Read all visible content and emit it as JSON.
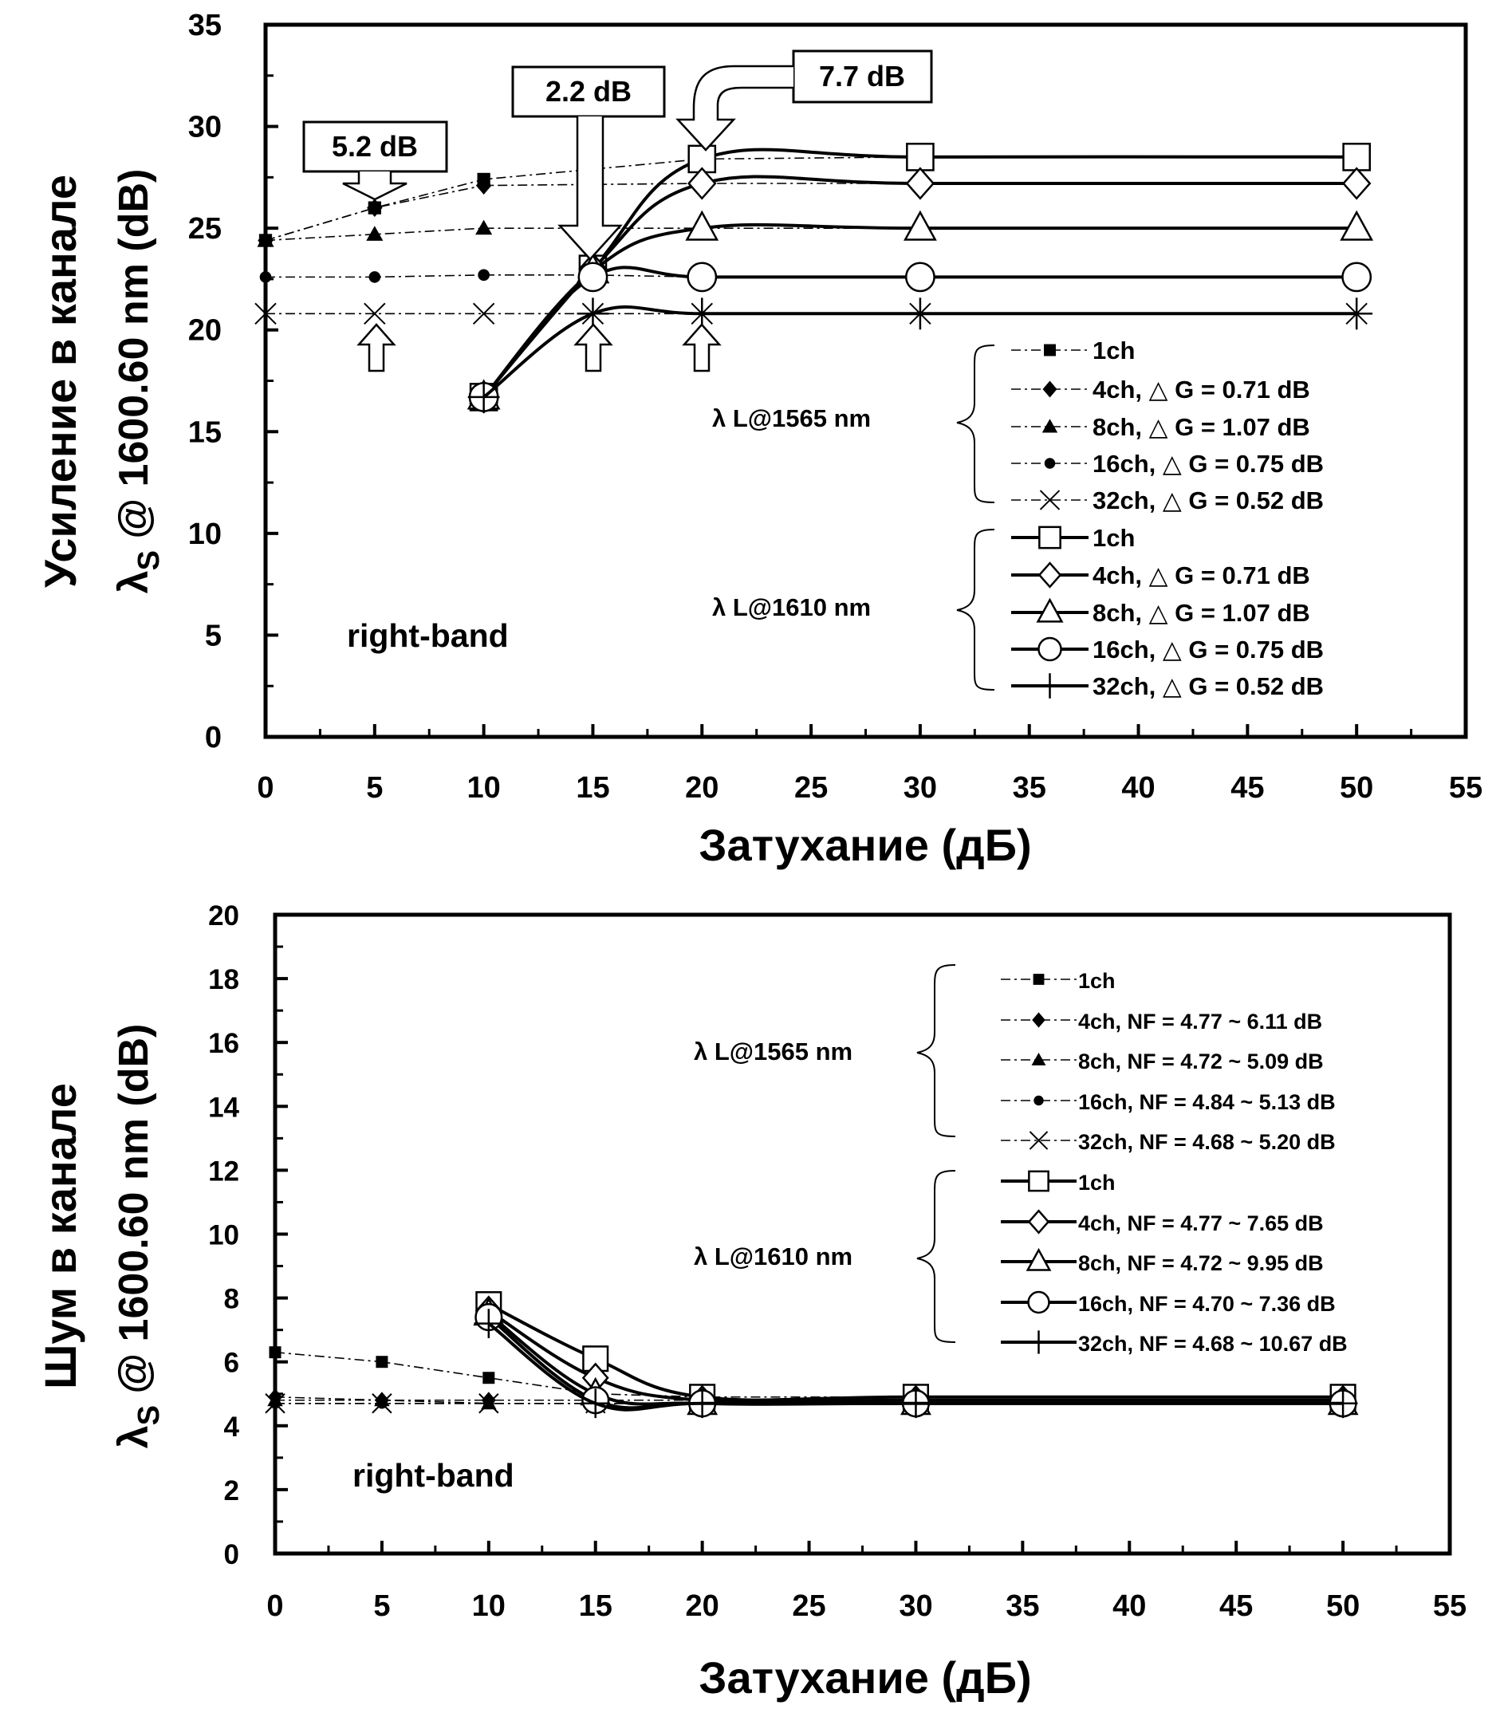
{
  "chart_data": [
    {
      "type": "line",
      "xlabel": "Затухание (дБ)",
      "ylabel_line1": "Усиление в канале",
      "ylabel_line2": "λ",
      "ylabel_line2_sub": "S",
      "ylabel_line2_rest": " @ 1600.60 nm (dB)",
      "xlim": [
        0,
        55
      ],
      "ylim": [
        0,
        35
      ],
      "xticks": [
        0,
        5,
        10,
        15,
        20,
        25,
        30,
        35,
        40,
        45,
        50,
        55
      ],
      "yticks": [
        0,
        5,
        10,
        15,
        20,
        25,
        30,
        35
      ],
      "band_label": "right-band",
      "group_labels": [
        "λ L@1565 nm",
        "λ L@1610 nm"
      ],
      "annotations": [
        "5.2 dB",
        "2.2 dB",
        "7.7 dB"
      ],
      "series": [
        {
          "name": "1ch",
          "group": "λ L@1565 nm",
          "marker": "square-filled",
          "dash": "dashdot",
          "x": [
            0,
            5,
            10,
            20,
            30,
            50
          ],
          "y": [
            24.4,
            26.0,
            27.4,
            28.4,
            28.5,
            28.5
          ]
        },
        {
          "name": "4ch, △ G = 0.71 dB",
          "group": "λ L@1565 nm",
          "marker": "diamond-filled",
          "dash": "dashdot",
          "x": [
            0,
            5,
            10,
            20,
            30,
            50
          ],
          "y": [
            24.4,
            26.0,
            27.1,
            27.2,
            27.2,
            27.2
          ]
        },
        {
          "name": "8ch, △ G = 1.07 dB",
          "group": "λ L@1565 nm",
          "marker": "triangle-filled",
          "dash": "dashdot",
          "x": [
            0,
            5,
            10,
            20,
            30,
            50
          ],
          "y": [
            24.4,
            24.7,
            25.0,
            25.0,
            25.0,
            25.0
          ]
        },
        {
          "name": "16ch, △ G = 0.75 dB",
          "group": "λ L@1565 nm",
          "marker": "circle-filled",
          "dash": "dashdot",
          "x": [
            0,
            5,
            10,
            15,
            20,
            30,
            50
          ],
          "y": [
            22.6,
            22.6,
            22.7,
            22.7,
            22.6,
            22.6,
            22.6
          ]
        },
        {
          "name": "32ch, △ G = 0.52 dB",
          "group": "λ L@1565 nm",
          "marker": "x",
          "dash": "dashdot",
          "x": [
            0,
            5,
            10,
            15,
            20,
            30,
            50
          ],
          "y": [
            20.8,
            20.8,
            20.8,
            20.8,
            20.8,
            20.8,
            20.8
          ]
        },
        {
          "name": "1ch",
          "group": "λ L@1610 nm",
          "marker": "square-open",
          "dash": "solid",
          "x": [
            10,
            15,
            20,
            30,
            50
          ],
          "y": [
            16.7,
            23.0,
            28.4,
            28.5,
            28.5
          ]
        },
        {
          "name": "4ch, △ G = 0.71 dB",
          "group": "λ L@1610 nm",
          "marker": "diamond-open",
          "dash": "solid",
          "x": [
            10,
            15,
            20,
            30,
            50
          ],
          "y": [
            16.7,
            23.0,
            27.2,
            27.2,
            27.2
          ]
        },
        {
          "name": "8ch, △ G = 1.07 dB",
          "group": "λ L@1610 nm",
          "marker": "triangle-open",
          "dash": "solid",
          "x": [
            10,
            15,
            20,
            30,
            50
          ],
          "y": [
            16.7,
            22.9,
            25.0,
            25.0,
            25.0
          ]
        },
        {
          "name": "16ch, △ G = 0.75 dB",
          "group": "λ L@1610 nm",
          "marker": "circle-open",
          "dash": "solid",
          "x": [
            10,
            15,
            20,
            30,
            50
          ],
          "y": [
            16.7,
            22.6,
            22.6,
            22.6,
            22.6
          ]
        },
        {
          "name": "32ch, △ G = 0.52 dB",
          "group": "λ L@1610 nm",
          "marker": "plus",
          "dash": "solid",
          "x": [
            10,
            15,
            20,
            30,
            50
          ],
          "y": [
            16.7,
            20.8,
            20.8,
            20.8,
            20.8
          ]
        }
      ]
    },
    {
      "type": "line",
      "xlabel": "Затухание (дБ)",
      "ylabel_line1": "Шум в канале",
      "ylabel_line2": "λ",
      "ylabel_line2_sub": "S",
      "ylabel_line2_rest": " @ 1600.60 nm (dB)",
      "xlim": [
        0,
        55
      ],
      "ylim": [
        0,
        20
      ],
      "xticks": [
        0,
        5,
        10,
        15,
        20,
        25,
        30,
        35,
        40,
        45,
        50,
        55
      ],
      "yticks": [
        0,
        2,
        4,
        6,
        8,
        10,
        12,
        14,
        16,
        18,
        20
      ],
      "band_label": "right-band",
      "group_labels": [
        "λ L@1565 nm",
        "λ L@1610 nm"
      ],
      "series": [
        {
          "name": "1ch",
          "group": "λ L@1565 nm",
          "marker": "square-filled",
          "dash": "dashdot",
          "x": [
            0,
            5,
            10,
            15,
            20,
            30,
            50
          ],
          "y": [
            6.3,
            6.0,
            5.5,
            5.0,
            4.9,
            4.9,
            4.9
          ]
        },
        {
          "name": "4ch, NF = 4.77 ~ 6.11 dB",
          "group": "λ L@1565 nm",
          "marker": "diamond-filled",
          "dash": "dashdot",
          "x": [
            0,
            5,
            10,
            15,
            20,
            30,
            50
          ],
          "y": [
            4.9,
            4.8,
            4.8,
            4.8,
            4.8,
            4.8,
            4.8
          ]
        },
        {
          "name": "8ch, NF = 4.72 ~ 5.09 dB",
          "group": "λ L@1565 nm",
          "marker": "triangle-filled",
          "dash": "dashdot",
          "x": [
            0,
            5,
            10,
            15,
            20,
            30,
            50
          ],
          "y": [
            4.8,
            4.8,
            4.7,
            4.7,
            4.7,
            4.7,
            4.7
          ]
        },
        {
          "name": "16ch, NF = 4.84 ~ 5.13 dB",
          "group": "λ L@1565 nm",
          "marker": "circle-filled",
          "dash": "dashdot",
          "x": [
            0,
            5,
            10,
            15,
            20,
            30,
            50
          ],
          "y": [
            4.7,
            4.7,
            4.7,
            4.7,
            4.7,
            4.7,
            4.7
          ]
        },
        {
          "name": "32ch, NF = 4.68 ~ 5.20 dB",
          "group": "λ L@1565 nm",
          "marker": "x",
          "dash": "dashdot",
          "x": [
            0,
            5,
            10,
            15,
            20,
            30,
            50
          ],
          "y": [
            4.7,
            4.7,
            4.7,
            4.7,
            4.7,
            4.7,
            4.7
          ]
        },
        {
          "name": "1ch",
          "group": "λ L@1610 nm",
          "marker": "square-open",
          "dash": "solid",
          "x": [
            10,
            15,
            20,
            30,
            50
          ],
          "y": [
            7.8,
            6.1,
            4.9,
            4.9,
            4.9
          ]
        },
        {
          "name": "4ch, NF = 4.77 ~ 7.65 dB",
          "group": "λ L@1610 nm",
          "marker": "diamond-open",
          "dash": "solid",
          "x": [
            10,
            15,
            20,
            30,
            50
          ],
          "y": [
            7.6,
            5.5,
            4.8,
            4.8,
            4.8
          ]
        },
        {
          "name": "8ch, NF = 4.72 ~ 9.95 dB",
          "group": "λ L@1610 nm",
          "marker": "triangle-open",
          "dash": "solid",
          "x": [
            10,
            15,
            20,
            30,
            50
          ],
          "y": [
            7.5,
            5.0,
            4.7,
            4.7,
            4.7
          ]
        },
        {
          "name": "16ch, NF = 4.70 ~ 7.36 dB",
          "group": "λ L@1610 nm",
          "marker": "circle-open",
          "dash": "solid",
          "x": [
            10,
            15,
            20,
            30,
            50
          ],
          "y": [
            7.4,
            4.8,
            4.7,
            4.7,
            4.7
          ]
        },
        {
          "name": "32ch, NF = 4.68 ~ 10.67 dB",
          "group": "λ L@1610 nm",
          "marker": "plus",
          "dash": "solid",
          "x": [
            10,
            15,
            20,
            30,
            50
          ],
          "y": [
            7.2,
            4.7,
            4.7,
            4.7,
            4.7
          ]
        }
      ]
    }
  ]
}
